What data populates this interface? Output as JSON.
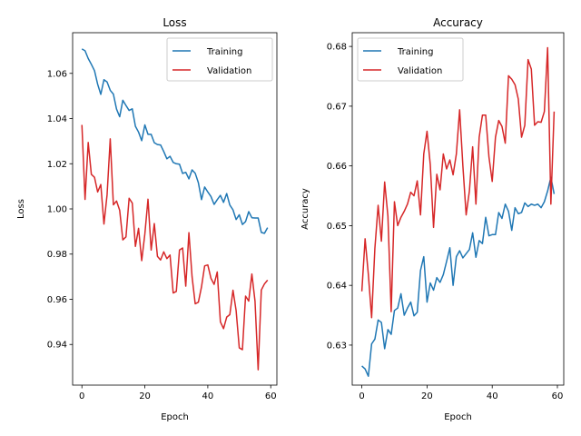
{
  "chart_data": [
    {
      "type": "line",
      "title": "Loss",
      "xlabel": "Epoch",
      "ylabel": "Loss",
      "xlim": [
        -2.95,
        61.95
      ],
      "ylim": [
        0.922,
        1.078
      ],
      "xticks": [
        0,
        20,
        40,
        60
      ],
      "yticks": [
        0.94,
        0.96,
        0.98,
        1.0,
        1.02,
        1.04,
        1.06
      ],
      "ytick_labels": [
        "0.94",
        "0.96",
        "0.98",
        "1.00",
        "1.02",
        "1.04",
        "1.06"
      ],
      "grid": false,
      "legend": "top-right",
      "x": [
        0,
        1,
        2,
        3,
        4,
        5,
        6,
        7,
        8,
        9,
        10,
        11,
        12,
        13,
        14,
        15,
        16,
        17,
        18,
        19,
        20,
        21,
        22,
        23,
        24,
        25,
        26,
        27,
        28,
        29,
        30,
        31,
        32,
        33,
        34,
        35,
        36,
        37,
        38,
        39,
        40,
        41,
        42,
        43,
        44,
        45,
        46,
        47,
        48,
        49,
        50,
        51,
        52,
        53,
        54,
        55,
        56,
        57,
        58,
        59
      ],
      "series": [
        {
          "name": "Training",
          "color": "#1f77b4",
          "values": [
            1.0708,
            1.07,
            1.0666,
            1.064,
            1.0612,
            1.0552,
            1.0507,
            1.0572,
            1.0562,
            1.0525,
            1.0508,
            1.0442,
            1.0408,
            1.0481,
            1.0458,
            1.0436,
            1.0443,
            1.0366,
            1.034,
            1.0302,
            1.0372,
            1.033,
            1.033,
            1.0293,
            1.0285,
            1.0283,
            1.0254,
            1.0222,
            1.0233,
            1.0206,
            1.02,
            1.0198,
            1.0157,
            1.0162,
            1.0133,
            1.0173,
            1.0158,
            1.0116,
            1.0041,
            1.0097,
            1.0075,
            1.0055,
            1.002,
            1.0041,
            1.006,
            1.0029,
            1.0068,
            1.0017,
            0.9996,
            0.9953,
            0.9974,
            0.9931,
            0.9944,
            0.9988,
            0.9961,
            0.996,
            0.996,
            0.9896,
            0.9892,
            0.9917
          ]
        },
        {
          "name": "Validation",
          "color": "#d62728",
          "values": [
            1.0372,
            1.0042,
            1.0294,
            1.0153,
            1.014,
            1.0075,
            1.0108,
            0.9933,
            1.0063,
            1.031,
            1.0018,
            1.0035,
            0.9994,
            0.9863,
            0.9876,
            1.0047,
            1.0026,
            0.9834,
            0.9914,
            0.9771,
            0.9889,
            1.0043,
            0.9818,
            0.9935,
            0.979,
            0.9774,
            0.981,
            0.978,
            0.9796,
            0.9628,
            0.9635,
            0.9818,
            0.9827,
            0.9658,
            0.9895,
            0.97,
            0.958,
            0.9587,
            0.9655,
            0.9748,
            0.9752,
            0.9693,
            0.9666,
            0.9721,
            0.95,
            0.947,
            0.9521,
            0.9532,
            0.964,
            0.955,
            0.9385,
            0.9377,
            0.9614,
            0.9592,
            0.9712,
            0.9592,
            0.9288,
            0.9641,
            0.9668,
            0.9685
          ]
        }
      ]
    },
    {
      "type": "line",
      "title": "Accuracy",
      "xlabel": "Epoch",
      "ylabel": "Accuracy",
      "xlim": [
        -2.95,
        61.95
      ],
      "ylim": [
        0.6233,
        0.6823
      ],
      "xticks": [
        0,
        20,
        40,
        60
      ],
      "yticks": [
        0.63,
        0.64,
        0.65,
        0.66,
        0.67,
        0.68
      ],
      "ytick_labels": [
        "0.63",
        "0.64",
        "0.65",
        "0.66",
        "0.67",
        "0.68"
      ],
      "grid": false,
      "legend": "top-left",
      "x": [
        0,
        1,
        2,
        3,
        4,
        5,
        6,
        7,
        8,
        9,
        10,
        11,
        12,
        13,
        14,
        15,
        16,
        17,
        18,
        19,
        20,
        21,
        22,
        23,
        24,
        25,
        26,
        27,
        28,
        29,
        30,
        31,
        32,
        33,
        34,
        35,
        36,
        37,
        38,
        39,
        40,
        41,
        42,
        43,
        44,
        45,
        46,
        47,
        48,
        49,
        50,
        51,
        52,
        53,
        54,
        55,
        56,
        57,
        58,
        59
      ],
      "series": [
        {
          "name": "Training",
          "color": "#1f77b4",
          "values": [
            0.6265,
            0.626,
            0.6248,
            0.6302,
            0.631,
            0.6342,
            0.6338,
            0.6294,
            0.6326,
            0.6318,
            0.6358,
            0.6362,
            0.6386,
            0.635,
            0.6362,
            0.6372,
            0.6349,
            0.6355,
            0.6425,
            0.6448,
            0.6372,
            0.6404,
            0.6392,
            0.6413,
            0.6405,
            0.6418,
            0.644,
            0.6463,
            0.64,
            0.6448,
            0.6458,
            0.6446,
            0.6453,
            0.646,
            0.6488,
            0.6447,
            0.6475,
            0.647,
            0.6514,
            0.6483,
            0.6485,
            0.6485,
            0.6522,
            0.6512,
            0.6536,
            0.6524,
            0.6492,
            0.653,
            0.652,
            0.6522,
            0.6538,
            0.6532,
            0.6536,
            0.6534,
            0.6536,
            0.653,
            0.654,
            0.6558,
            0.6581,
            0.6553
          ]
        },
        {
          "name": "Validation",
          "color": "#d62728",
          "values": [
            0.639,
            0.6478,
            0.6418,
            0.6346,
            0.6462,
            0.6534,
            0.6474,
            0.6573,
            0.6516,
            0.6356,
            0.654,
            0.65,
            0.6514,
            0.6524,
            0.6536,
            0.6556,
            0.655,
            0.6575,
            0.6518,
            0.662,
            0.6658,
            0.6602,
            0.6497,
            0.6586,
            0.656,
            0.662,
            0.6595,
            0.661,
            0.6585,
            0.662,
            0.6694,
            0.66,
            0.6518,
            0.6558,
            0.6632,
            0.6536,
            0.6648,
            0.6685,
            0.6685,
            0.6615,
            0.6574,
            0.6648,
            0.6676,
            0.6666,
            0.6638,
            0.6751,
            0.6745,
            0.6736,
            0.6712,
            0.6648,
            0.6668,
            0.6778,
            0.6762,
            0.6668,
            0.6674,
            0.6673,
            0.6691,
            0.6798,
            0.6536,
            0.6691
          ]
        }
      ]
    }
  ]
}
